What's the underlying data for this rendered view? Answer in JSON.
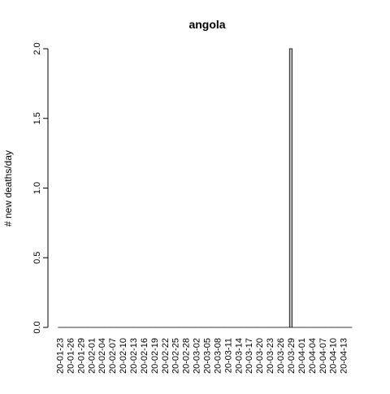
{
  "chart_data": {
    "type": "bar",
    "title": "angola",
    "xlabel": "",
    "ylabel": "# new deaths/day",
    "ylim": [
      0,
      2
    ],
    "yticks": [
      "0.0",
      "0.5",
      "1.0",
      "1.5",
      "2.0"
    ],
    "grid": false,
    "bar_color": "#bebebe",
    "start_date": "2020-01-23",
    "x_tick_labels": [
      "20-01-23",
      "20-01-26",
      "20-01-29",
      "20-02-01",
      "20-02-04",
      "20-02-07",
      "20-02-10",
      "20-02-13",
      "20-02-16",
      "20-02-19",
      "20-02-22",
      "20-02-25",
      "20-02-28",
      "20-03-02",
      "20-03-05",
      "20-03-08",
      "20-03-11",
      "20-03-14",
      "20-03-17",
      "20-03-20",
      "20-03-23",
      "20-03-26",
      "20-03-29",
      "20-04-01",
      "20-04-04",
      "20-04-07",
      "20-04-10",
      "20-04-13"
    ],
    "categories": [
      "20-01-23",
      "20-01-24",
      "20-01-25",
      "20-01-26",
      "20-01-27",
      "20-01-28",
      "20-01-29",
      "20-01-30",
      "20-01-31",
      "20-02-01",
      "20-02-02",
      "20-02-03",
      "20-02-04",
      "20-02-05",
      "20-02-06",
      "20-02-07",
      "20-02-08",
      "20-02-09",
      "20-02-10",
      "20-02-11",
      "20-02-12",
      "20-02-13",
      "20-02-14",
      "20-02-15",
      "20-02-16",
      "20-02-17",
      "20-02-18",
      "20-02-19",
      "20-02-20",
      "20-02-21",
      "20-02-22",
      "20-02-23",
      "20-02-24",
      "20-02-25",
      "20-02-26",
      "20-02-27",
      "20-02-28",
      "20-02-29",
      "20-03-01",
      "20-03-02",
      "20-03-03",
      "20-03-04",
      "20-03-05",
      "20-03-06",
      "20-03-07",
      "20-03-08",
      "20-03-09",
      "20-03-10",
      "20-03-11",
      "20-03-12",
      "20-03-13",
      "20-03-14",
      "20-03-15",
      "20-03-16",
      "20-03-17",
      "20-03-18",
      "20-03-19",
      "20-03-20",
      "20-03-21",
      "20-03-22",
      "20-03-23",
      "20-03-24",
      "20-03-25",
      "20-03-26",
      "20-03-27",
      "20-03-28",
      "20-03-29",
      "20-03-30",
      "20-03-31",
      "20-04-01",
      "20-04-02",
      "20-04-03",
      "20-04-04",
      "20-04-05",
      "20-04-06",
      "20-04-07",
      "20-04-08",
      "20-04-09",
      "20-04-10",
      "20-04-11",
      "20-04-12",
      "20-04-13",
      "20-04-14",
      "20-04-15"
    ],
    "values": [
      0,
      0,
      0,
      0,
      0,
      0,
      0,
      0,
      0,
      0,
      0,
      0,
      0,
      0,
      0,
      0,
      0,
      0,
      0,
      0,
      0,
      0,
      0,
      0,
      0,
      0,
      0,
      0,
      0,
      0,
      0,
      0,
      0,
      0,
      0,
      0,
      0,
      0,
      0,
      0,
      0,
      0,
      0,
      0,
      0,
      0,
      0,
      0,
      0,
      0,
      0,
      0,
      0,
      0,
      0,
      0,
      0,
      0,
      0,
      0,
      0,
      0,
      0,
      0,
      0,
      0,
      2,
      0,
      0,
      0,
      0,
      0,
      0,
      0,
      0,
      0,
      0,
      0,
      0,
      0,
      0,
      0,
      0,
      0
    ]
  }
}
